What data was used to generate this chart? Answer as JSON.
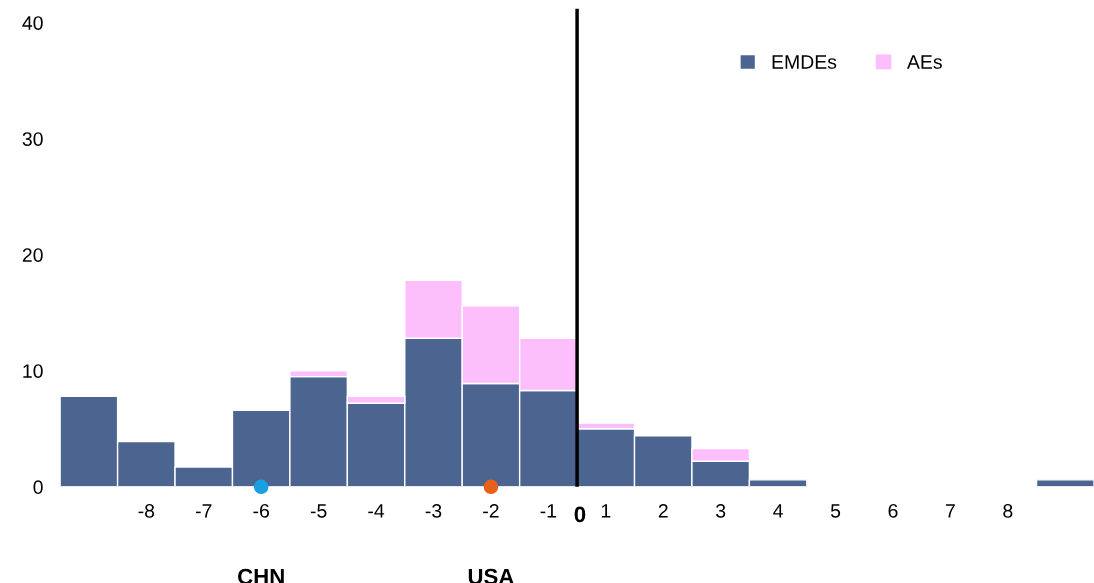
{
  "chart_data": {
    "type": "bar",
    "stacked": true,
    "categories": [
      null,
      "-8",
      "-7",
      "-6",
      "-5",
      "-4",
      "-3",
      "-2",
      "-1",
      "1",
      "2",
      "3",
      "4",
      "5",
      "6",
      "7",
      "8",
      null
    ],
    "series": [
      {
        "name": "EMDEs",
        "color": "#4c6490",
        "values": [
          7.8,
          3.9,
          1.7,
          6.6,
          9.5,
          7.2,
          12.8,
          8.9,
          8.3,
          5.0,
          4.4,
          2.2,
          0.6,
          0,
          0,
          0,
          0,
          0.6
        ]
      },
      {
        "name": "AEs",
        "color": "#fcbffc",
        "values": [
          0,
          0,
          0,
          0,
          0.5,
          0.6,
          5.0,
          6.7,
          4.5,
          0.5,
          0,
          1.1,
          0,
          0,
          0,
          0,
          0,
          0
        ]
      },
      {
        "type": "scatter",
        "color": "#1a9fe0",
        "x": [
          "-6"
        ],
        "values": [
          0
        ]
      },
      {
        "type": "scatter",
        "color": "#e8601c",
        "x": [
          "-2"
        ],
        "values": [
          0
        ]
      }
    ],
    "ylim": [
      0,
      41.2
    ],
    "yticks": [
      0,
      10,
      20,
      30,
      40
    ],
    "annotations": [
      "0",
      "CHN",
      "USA"
    ],
    "legend": "top right",
    "marker": "circle"
  }
}
